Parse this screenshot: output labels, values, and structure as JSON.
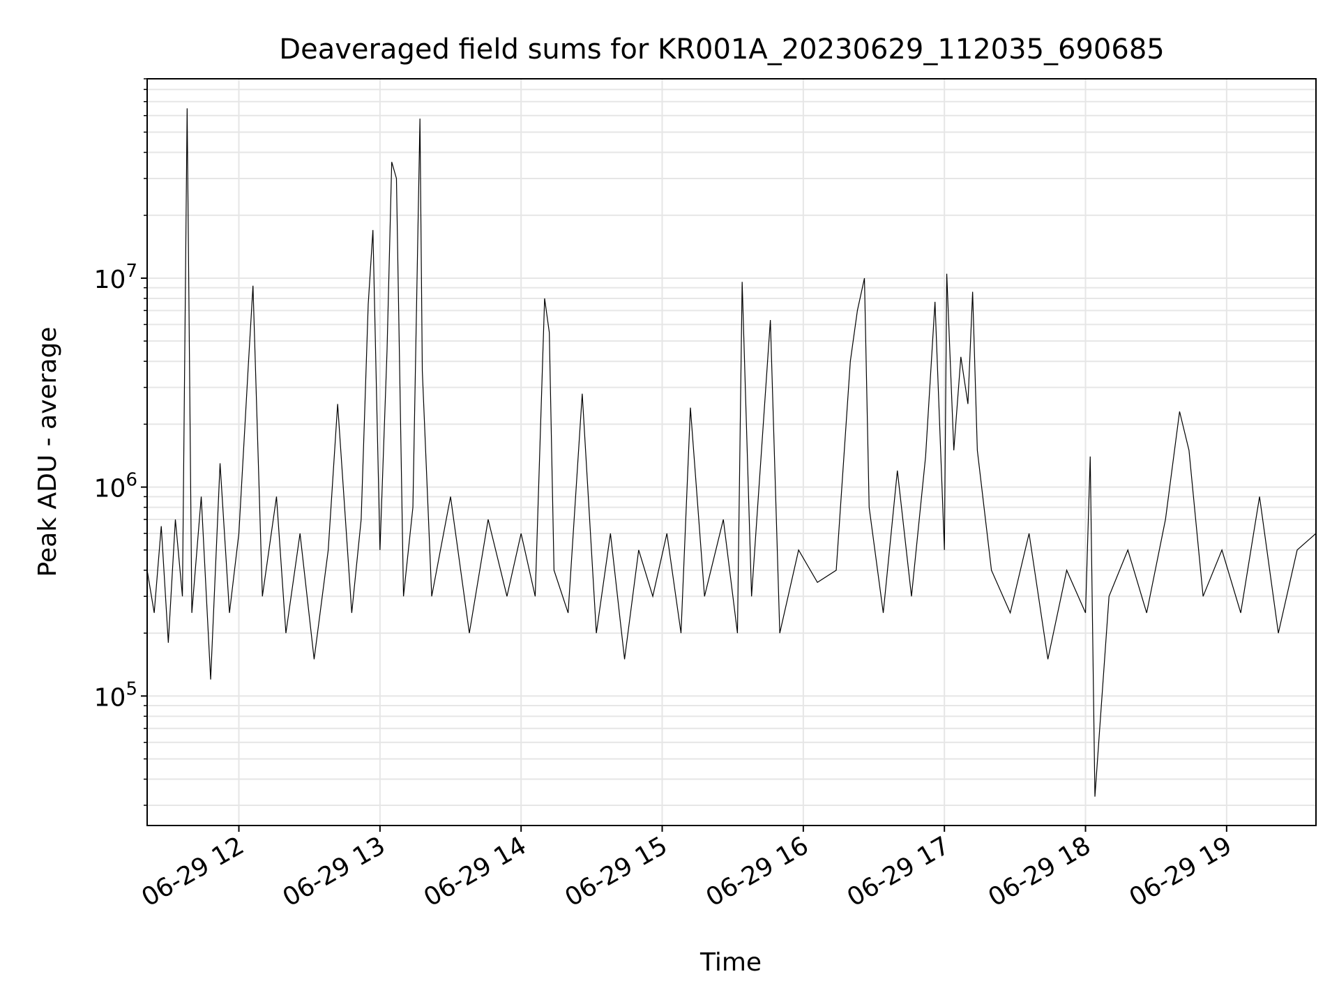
{
  "chart_data": {
    "type": "line",
    "title": "Deaveraged field sums for KR001A_20230629_112035_690685",
    "xlabel": "Time",
    "ylabel": "Peak ADU - average",
    "y_scale": "log",
    "grid": true,
    "line_color": "#000000",
    "grid_color": "#e6e6e6",
    "x_range": [
      "2023-06-29 11:21",
      "2023-06-29 19:38"
    ],
    "ylim": [
      24000,
      90000000
    ],
    "x_ticks": [
      {
        "at": "2023-06-29 12:00",
        "label": "06-29 12"
      },
      {
        "at": "2023-06-29 13:00",
        "label": "06-29 13"
      },
      {
        "at": "2023-06-29 14:00",
        "label": "06-29 14"
      },
      {
        "at": "2023-06-29 15:00",
        "label": "06-29 15"
      },
      {
        "at": "2023-06-29 16:00",
        "label": "06-29 16"
      },
      {
        "at": "2023-06-29 17:00",
        "label": "06-29 17"
      },
      {
        "at": "2023-06-29 18:00",
        "label": "06-29 18"
      },
      {
        "at": "2023-06-29 19:00",
        "label": "06-29 19"
      }
    ],
    "y_ticks": [
      {
        "value": 100000,
        "base": "10",
        "exp": "5"
      },
      {
        "value": 1000000,
        "base": "10",
        "exp": "6"
      },
      {
        "value": 10000000,
        "base": "10",
        "exp": "7"
      }
    ],
    "series": [
      {
        "name": "",
        "points": [
          [
            "2023-06-29 11:21",
            400000
          ],
          [
            "2023-06-29 11:24",
            250000
          ],
          [
            "2023-06-29 11:27",
            650000
          ],
          [
            "2023-06-29 11:30",
            180000
          ],
          [
            "2023-06-29 11:33",
            700000
          ],
          [
            "2023-06-29 11:36",
            300000
          ],
          [
            "2023-06-29 11:38",
            65000000
          ],
          [
            "2023-06-29 11:40",
            250000
          ],
          [
            "2023-06-29 11:44",
            900000
          ],
          [
            "2023-06-29 11:48",
            120000
          ],
          [
            "2023-06-29 11:52",
            1300000
          ],
          [
            "2023-06-29 11:56",
            250000
          ],
          [
            "2023-06-29 12:00",
            600000
          ],
          [
            "2023-06-29 12:04",
            3800000
          ],
          [
            "2023-06-29 12:06",
            9200000
          ],
          [
            "2023-06-29 12:10",
            300000
          ],
          [
            "2023-06-29 12:16",
            900000
          ],
          [
            "2023-06-29 12:20",
            200000
          ],
          [
            "2023-06-29 12:26",
            600000
          ],
          [
            "2023-06-29 12:32",
            150000
          ],
          [
            "2023-06-29 12:38",
            500000
          ],
          [
            "2023-06-29 12:42",
            2500000
          ],
          [
            "2023-06-29 12:48",
            250000
          ],
          [
            "2023-06-29 12:52",
            700000
          ],
          [
            "2023-06-29 12:55",
            7500000
          ],
          [
            "2023-06-29 12:57",
            17000000
          ],
          [
            "2023-06-29 13:00",
            500000
          ],
          [
            "2023-06-29 13:03",
            4500000
          ],
          [
            "2023-06-29 13:05",
            36000000
          ],
          [
            "2023-06-29 13:07",
            30000000
          ],
          [
            "2023-06-29 13:10",
            300000
          ],
          [
            "2023-06-29 13:14",
            800000
          ],
          [
            "2023-06-29 13:17",
            58000000
          ],
          [
            "2023-06-29 13:18",
            3600000
          ],
          [
            "2023-06-29 13:22",
            300000
          ],
          [
            "2023-06-29 13:30",
            900000
          ],
          [
            "2023-06-29 13:38",
            200000
          ],
          [
            "2023-06-29 13:46",
            700000
          ],
          [
            "2023-06-29 13:54",
            300000
          ],
          [
            "2023-06-29 14:00",
            600000
          ],
          [
            "2023-06-29 14:06",
            300000
          ],
          [
            "2023-06-29 14:10",
            8000000
          ],
          [
            "2023-06-29 14:12",
            5500000
          ],
          [
            "2023-06-29 14:14",
            400000
          ],
          [
            "2023-06-29 14:20",
            250000
          ],
          [
            "2023-06-29 14:26",
            2800000
          ],
          [
            "2023-06-29 14:32",
            200000
          ],
          [
            "2023-06-29 14:38",
            600000
          ],
          [
            "2023-06-29 14:44",
            150000
          ],
          [
            "2023-06-29 14:50",
            500000
          ],
          [
            "2023-06-29 14:56",
            300000
          ],
          [
            "2023-06-29 15:02",
            600000
          ],
          [
            "2023-06-29 15:08",
            200000
          ],
          [
            "2023-06-29 15:12",
            2400000
          ],
          [
            "2023-06-29 15:18",
            300000
          ],
          [
            "2023-06-29 15:26",
            700000
          ],
          [
            "2023-06-29 15:32",
            200000
          ],
          [
            "2023-06-29 15:34",
            9600000
          ],
          [
            "2023-06-29 15:38",
            300000
          ],
          [
            "2023-06-29 15:46",
            6300000
          ],
          [
            "2023-06-29 15:50",
            200000
          ],
          [
            "2023-06-29 15:58",
            500000
          ],
          [
            "2023-06-29 16:06",
            350000
          ],
          [
            "2023-06-29 16:14",
            400000
          ],
          [
            "2023-06-29 16:20",
            4000000
          ],
          [
            "2023-06-29 16:23",
            7000000
          ],
          [
            "2023-06-29 16:26",
            10000000
          ],
          [
            "2023-06-29 16:28",
            800000
          ],
          [
            "2023-06-29 16:34",
            250000
          ],
          [
            "2023-06-29 16:40",
            1200000
          ],
          [
            "2023-06-29 16:46",
            300000
          ],
          [
            "2023-06-29 16:52",
            1400000
          ],
          [
            "2023-06-29 16:56",
            7700000
          ],
          [
            "2023-06-29 17:00",
            500000
          ],
          [
            "2023-06-29 17:01",
            10500000
          ],
          [
            "2023-06-29 17:04",
            1500000
          ],
          [
            "2023-06-29 17:07",
            4200000
          ],
          [
            "2023-06-29 17:10",
            2500000
          ],
          [
            "2023-06-29 17:12",
            8600000
          ],
          [
            "2023-06-29 17:14",
            1500000
          ],
          [
            "2023-06-29 17:20",
            400000
          ],
          [
            "2023-06-29 17:28",
            250000
          ],
          [
            "2023-06-29 17:36",
            600000
          ],
          [
            "2023-06-29 17:44",
            150000
          ],
          [
            "2023-06-29 17:52",
            400000
          ],
          [
            "2023-06-29 18:00",
            250000
          ],
          [
            "2023-06-29 18:02",
            1400000
          ],
          [
            "2023-06-29 18:04",
            33000
          ],
          [
            "2023-06-29 18:10",
            300000
          ],
          [
            "2023-06-29 18:18",
            500000
          ],
          [
            "2023-06-29 18:26",
            250000
          ],
          [
            "2023-06-29 18:34",
            700000
          ],
          [
            "2023-06-29 18:40",
            2300000
          ],
          [
            "2023-06-29 18:44",
            1500000
          ],
          [
            "2023-06-29 18:50",
            300000
          ],
          [
            "2023-06-29 18:58",
            500000
          ],
          [
            "2023-06-29 19:06",
            250000
          ],
          [
            "2023-06-29 19:14",
            900000
          ],
          [
            "2023-06-29 19:22",
            200000
          ],
          [
            "2023-06-29 19:30",
            500000
          ],
          [
            "2023-06-29 19:38",
            600000
          ]
        ]
      }
    ]
  }
}
